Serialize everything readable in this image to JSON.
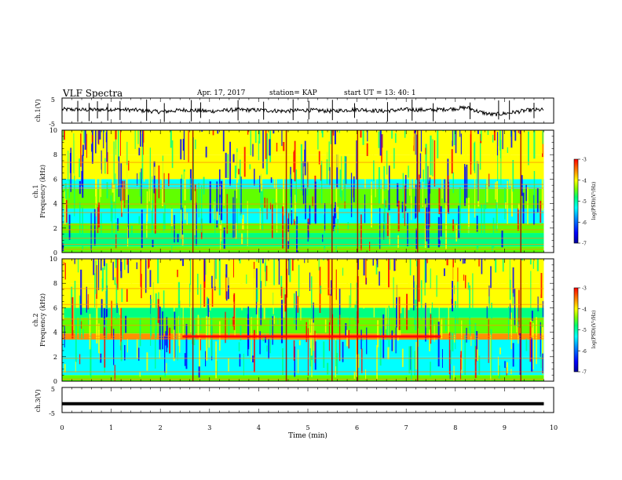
{
  "header": {
    "title": "VLF Spectra",
    "date": "Apr. 17, 2017",
    "station": "station= KAP",
    "start": "start  UT  =   13: 40: 1"
  },
  "colors": {
    "spectrogram": [
      "#0000a0",
      "#0000ff",
      "#0090ff",
      "#00ffff",
      "#00ff80",
      "#60ff00",
      "#ffff00",
      "#ff9000",
      "#ff0000",
      "#a00000"
    ],
    "trace": "#000000"
  },
  "chart_data": [
    {
      "type": "line",
      "panel": "ch1-waveform",
      "ylabel": "ch.1(V)",
      "ylim": [
        -5,
        5
      ],
      "yticks": [
        "5",
        "-5"
      ],
      "xlim": [
        0,
        10
      ],
      "x_extent": [
        0,
        9.8
      ],
      "series": [
        {
          "x": [
            0,
            0.5,
            1,
            1.5,
            2,
            2.5,
            3,
            3.5,
            4,
            4.5,
            5,
            5.5,
            6,
            6.5,
            7,
            7.5,
            8,
            8.25,
            8.5,
            8.75,
            9,
            9.25,
            9.5,
            9.8
          ],
          "values": [
            0.5,
            0.3,
            0.5,
            0.2,
            -0.5,
            0.3,
            -0.3,
            0.3,
            0.2,
            -0.2,
            0.2,
            -0.2,
            0.5,
            -0.2,
            0.4,
            0.2,
            0.8,
            1.2,
            -0.6,
            -1.6,
            -1.2,
            -0.5,
            0.2,
            0.3
          ]
        }
      ]
    },
    {
      "type": "heatmap",
      "panel": "ch1-spectrogram",
      "xlim": [
        0,
        10
      ],
      "ylim": [
        0,
        10
      ],
      "ylabel": "ch.1 Frequency (kHz)",
      "yticks": [
        "0",
        "2",
        "4",
        "6",
        "8",
        "10"
      ],
      "colorbar": {
        "label": "log(PSD)(V²/Hz)",
        "ticks": [
          "-3",
          "-4",
          "-5",
          "-6",
          "-7"
        ],
        "range": [
          -7,
          -3
        ]
      }
    },
    {
      "type": "heatmap",
      "panel": "ch2-spectrogram",
      "xlim": [
        0,
        10
      ],
      "ylim": [
        0,
        10
      ],
      "ylabel": "ch.2 Frequency (kHz)",
      "yticks": [
        "0",
        "2",
        "4",
        "6",
        "8",
        "10"
      ],
      "colorbar": {
        "label": "log(PSD)(V²/Hz)",
        "ticks": [
          "-3",
          "-4",
          "-5",
          "-6",
          "-7"
        ],
        "range": [
          -7,
          -3
        ]
      }
    },
    {
      "type": "line",
      "panel": "ch3-waveform",
      "ylabel": "ch.3(V)",
      "ylim": [
        -5,
        5
      ],
      "yticks": [
        "5",
        "-5"
      ],
      "xlim": [
        0,
        10
      ],
      "x_extent": [
        0,
        9.8
      ],
      "series": [
        {
          "x": [
            0,
            9.8
          ],
          "values": [
            -1.5,
            -1.5
          ]
        }
      ]
    }
  ],
  "xaxis": {
    "label": "Time (min)",
    "ticks": [
      "0",
      "1",
      "2",
      "3",
      "4",
      "5",
      "6",
      "7",
      "8",
      "9",
      "10"
    ]
  }
}
